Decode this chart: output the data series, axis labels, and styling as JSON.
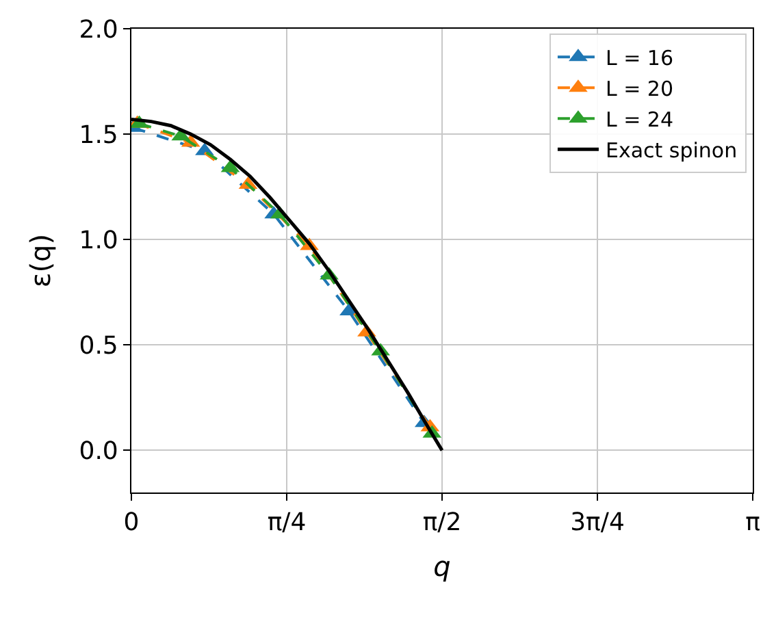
{
  "chart_data": {
    "type": "line",
    "xlabel": "q",
    "ylabel": "ε(q)",
    "xlim": [
      0,
      3.1416
    ],
    "ylim": [
      -0.2,
      2.0
    ],
    "xticks": [
      {
        "value": 0,
        "label": "0"
      },
      {
        "value": 0.7854,
        "label": "π/4"
      },
      {
        "value": 1.5708,
        "label": "π/2"
      },
      {
        "value": 2.3562,
        "label": "3π/4"
      },
      {
        "value": 3.1416,
        "label": "π"
      }
    ],
    "yticks": [
      {
        "value": 0,
        "label": "0.0"
      },
      0.5,
      {
        "value": 1,
        "label": "1.0"
      },
      1.5,
      {
        "value": 2,
        "label": "2.0"
      }
    ],
    "grid": true,
    "legend": "top right",
    "series": [
      {
        "name": "L = 16",
        "color": "#1f77b4",
        "marker": "triangle",
        "line_style": "dashed",
        "x": [
          0.01,
          0.37,
          0.72,
          1.1,
          1.48
        ],
        "values": [
          1.53,
          1.42,
          1.12,
          0.66,
          0.13
        ]
      },
      {
        "name": "L = 20",
        "color": "#ff7f0e",
        "marker": "triangle",
        "line_style": "dashed",
        "x": [
          0.03,
          0.3,
          0.59,
          0.9,
          1.19,
          1.51
        ],
        "values": [
          1.55,
          1.46,
          1.26,
          0.97,
          0.56,
          0.11
        ]
      },
      {
        "name": "L = 24",
        "color": "#2ca02c",
        "marker": "triangle",
        "line_style": "dashed",
        "x": [
          0.04,
          0.25,
          0.5,
          0.75,
          1.0,
          1.26,
          1.52
        ],
        "values": [
          1.55,
          1.49,
          1.34,
          1.12,
          0.83,
          0.47,
          0.08
        ]
      },
      {
        "name": "Exact spinon",
        "color": "#000000",
        "marker": "none",
        "line_style": "solid",
        "x": [
          0,
          0.1,
          0.2,
          0.3,
          0.4,
          0.5,
          0.6,
          0.7,
          0.8,
          0.9,
          1.0,
          1.1,
          1.2,
          1.3,
          1.4,
          1.5,
          1.5708
        ],
        "values": [
          1.57,
          1.56,
          1.54,
          1.5,
          1.45,
          1.38,
          1.3,
          1.2,
          1.09,
          0.98,
          0.85,
          0.71,
          0.57,
          0.42,
          0.27,
          0.11,
          0.0
        ]
      }
    ]
  }
}
